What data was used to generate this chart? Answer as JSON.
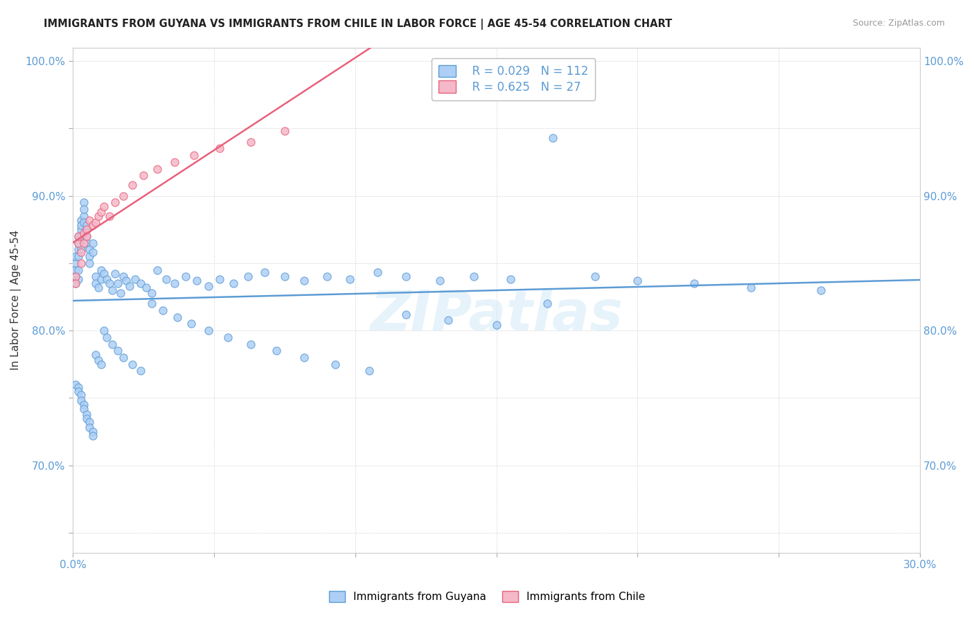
{
  "title": "IMMIGRANTS FROM GUYANA VS IMMIGRANTS FROM CHILE IN LABOR FORCE | AGE 45-54 CORRELATION CHART",
  "source": "Source: ZipAtlas.com",
  "ylabel": "In Labor Force | Age 45-54",
  "xlim": [
    0.0,
    0.3
  ],
  "ylim": [
    0.635,
    1.01
  ],
  "xticks": [
    0.0,
    0.05,
    0.1,
    0.15,
    0.2,
    0.25,
    0.3
  ],
  "xticklabels": [
    "0.0%",
    "",
    "",
    "",
    "",
    "",
    "30.0%"
  ],
  "yticks": [
    0.65,
    0.7,
    0.75,
    0.8,
    0.85,
    0.9,
    0.95,
    1.0
  ],
  "yticklabels": [
    "",
    "70.0%",
    "",
    "80.0%",
    "",
    "90.0%",
    "",
    "100.0%"
  ],
  "guyana_color": "#aecff5",
  "chile_color": "#f5b8c8",
  "guyana_line_color": "#5b9bd5",
  "chile_line_color": "#e8607a",
  "R_guyana": 0.029,
  "N_guyana": 112,
  "R_chile": 0.625,
  "N_chile": 27,
  "legend_label_guyana": "Immigrants from Guyana",
  "legend_label_chile": "Immigrants from Chile",
  "watermark": "ZIPatlas",
  "tick_color": "#5b9bd5",
  "background_color": "#ffffff",
  "guyana_x": [
    0.001,
    0.001,
    0.001,
    0.001,
    0.001,
    0.002,
    0.002,
    0.002,
    0.002,
    0.002,
    0.002,
    0.003,
    0.003,
    0.003,
    0.003,
    0.003,
    0.003,
    0.004,
    0.004,
    0.004,
    0.004,
    0.005,
    0.005,
    0.005,
    0.005,
    0.006,
    0.006,
    0.006,
    0.007,
    0.007,
    0.008,
    0.008,
    0.009,
    0.01,
    0.01,
    0.011,
    0.012,
    0.013,
    0.014,
    0.015,
    0.016,
    0.017,
    0.018,
    0.019,
    0.02,
    0.022,
    0.024,
    0.026,
    0.028,
    0.03,
    0.033,
    0.036,
    0.04,
    0.044,
    0.048,
    0.052,
    0.057,
    0.062,
    0.068,
    0.075,
    0.082,
    0.09,
    0.098,
    0.108,
    0.118,
    0.13,
    0.142,
    0.155,
    0.17,
    0.185,
    0.2,
    0.22,
    0.24,
    0.265,
    0.001,
    0.002,
    0.002,
    0.003,
    0.003,
    0.004,
    0.004,
    0.005,
    0.005,
    0.006,
    0.006,
    0.007,
    0.007,
    0.008,
    0.009,
    0.01,
    0.011,
    0.012,
    0.014,
    0.016,
    0.018,
    0.021,
    0.024,
    0.028,
    0.032,
    0.037,
    0.042,
    0.048,
    0.055,
    0.063,
    0.072,
    0.082,
    0.093,
    0.105,
    0.118,
    0.133,
    0.15,
    0.168
  ],
  "guyana_y": [
    0.85,
    0.84,
    0.835,
    0.845,
    0.855,
    0.87,
    0.86,
    0.855,
    0.865,
    0.845,
    0.838,
    0.882,
    0.875,
    0.868,
    0.86,
    0.878,
    0.87,
    0.885,
    0.895,
    0.89,
    0.88,
    0.875,
    0.87,
    0.878,
    0.865,
    0.86,
    0.855,
    0.85,
    0.865,
    0.858,
    0.84,
    0.835,
    0.832,
    0.845,
    0.838,
    0.842,
    0.838,
    0.835,
    0.83,
    0.842,
    0.835,
    0.828,
    0.84,
    0.837,
    0.833,
    0.838,
    0.835,
    0.832,
    0.828,
    0.845,
    0.838,
    0.835,
    0.84,
    0.837,
    0.833,
    0.838,
    0.835,
    0.84,
    0.843,
    0.84,
    0.837,
    0.84,
    0.838,
    0.843,
    0.84,
    0.837,
    0.84,
    0.838,
    0.943,
    0.84,
    0.837,
    0.835,
    0.832,
    0.83,
    0.76,
    0.758,
    0.755,
    0.752,
    0.748,
    0.745,
    0.742,
    0.738,
    0.735,
    0.732,
    0.728,
    0.725,
    0.722,
    0.782,
    0.778,
    0.775,
    0.8,
    0.795,
    0.79,
    0.785,
    0.78,
    0.775,
    0.77,
    0.82,
    0.815,
    0.81,
    0.805,
    0.8,
    0.795,
    0.79,
    0.785,
    0.78,
    0.775,
    0.77,
    0.812,
    0.808,
    0.804,
    0.82
  ],
  "chile_x": [
    0.001,
    0.001,
    0.002,
    0.002,
    0.003,
    0.003,
    0.004,
    0.004,
    0.005,
    0.005,
    0.006,
    0.007,
    0.008,
    0.009,
    0.01,
    0.011,
    0.013,
    0.015,
    0.018,
    0.021,
    0.025,
    0.03,
    0.036,
    0.043,
    0.052,
    0.063,
    0.075
  ],
  "chile_y": [
    0.84,
    0.835,
    0.865,
    0.87,
    0.85,
    0.858,
    0.872,
    0.865,
    0.875,
    0.87,
    0.882,
    0.878,
    0.88,
    0.885,
    0.888,
    0.892,
    0.885,
    0.895,
    0.9,
    0.908,
    0.915,
    0.92,
    0.925,
    0.93,
    0.935,
    0.94,
    0.948
  ]
}
